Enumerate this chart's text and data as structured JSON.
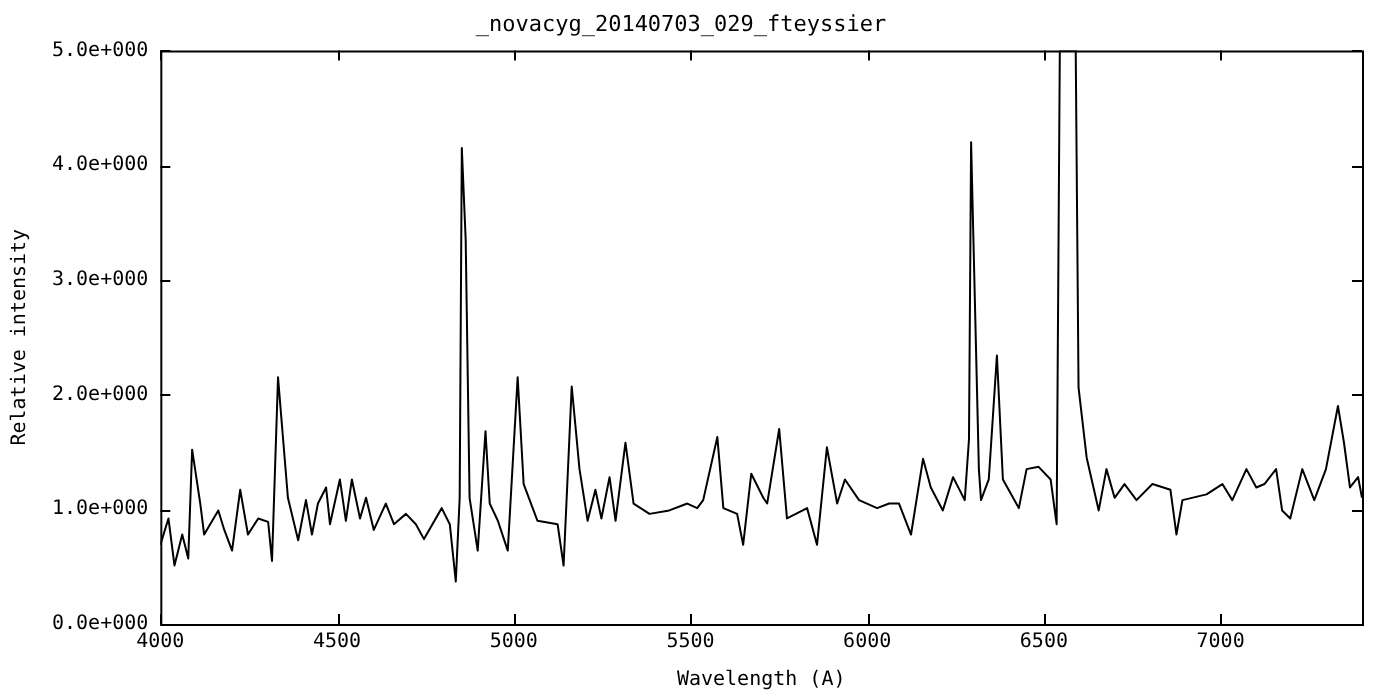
{
  "chart_data": {
    "type": "line",
    "title": "_novacyg_20140703_029_fteyssier",
    "xlabel": "Wavelength (A)",
    "ylabel": "Relative intensity",
    "xlim": [
      4000,
      7400
    ],
    "xticks": [
      4000,
      4500,
      5000,
      5500,
      6000,
      6500,
      7000
    ],
    "ylim": [
      0,
      5
    ],
    "yticks": [
      {
        "value": 0,
        "label": "0.0e+000"
      },
      {
        "value": 1,
        "label": "1.0e+000"
      },
      {
        "value": 2,
        "label": "2.0e+000"
      },
      {
        "value": 3,
        "label": "3.0e+000"
      },
      {
        "value": 4,
        "label": "4.0e+000"
      },
      {
        "value": 5,
        "label": "5.0e+000"
      }
    ],
    "grid": false,
    "legend": false,
    "marker": "none",
    "line_style": "solid",
    "series": [
      {
        "color": "#000000",
        "x": [
          4000,
          4023,
          4040,
          4062,
          4079,
          4090,
          4113,
          4124,
          4164,
          4181,
          4203,
          4226,
          4248,
          4277,
          4305,
          4316,
          4333,
          4345,
          4361,
          4390,
          4412,
          4429,
          4446,
          4469,
          4480,
          4508,
          4525,
          4542,
          4565,
          4582,
          4604,
          4638,
          4661,
          4695,
          4723,
          4746,
          4796,
          4819,
          4836,
          4847,
          4853,
          4864,
          4875,
          4898,
          4920,
          4932,
          4955,
          4983,
          5011,
          5028,
          5067,
          5124,
          5141,
          5164,
          5186,
          5209,
          5231,
          5248,
          5271,
          5288,
          5316,
          5339,
          5384,
          5440,
          5491,
          5519,
          5536,
          5576,
          5593,
          5632,
          5649,
          5672,
          5706,
          5717,
          5751,
          5773,
          5830,
          5858,
          5886,
          5915,
          5937,
          5977,
          6028,
          6062,
          6090,
          6124,
          6158,
          6180,
          6214,
          6243,
          6276,
          6288,
          6294,
          6316,
          6322,
          6344,
          6367,
          6384,
          6429,
          6451,
          6485,
          6519,
          6536,
          6545,
          6590,
          6598,
          6621,
          6655,
          6677,
          6700,
          6728,
          6762,
          6807,
          6858,
          6875,
          6892,
          6960,
          7005,
          7033,
          7073,
          7101,
          7124,
          7157,
          7174,
          7197,
          7231,
          7265,
          7298,
          7332,
          7349,
          7366,
          7389,
          7400
        ],
        "values": [
          0.69,
          0.92,
          0.51,
          0.78,
          0.57,
          1.52,
          1.05,
          0.78,
          0.99,
          0.82,
          0.64,
          1.17,
          0.78,
          0.92,
          0.89,
          0.55,
          2.15,
          1.7,
          1.1,
          0.73,
          1.08,
          0.78,
          1.05,
          1.19,
          0.87,
          1.26,
          0.9,
          1.26,
          0.92,
          1.1,
          0.82,
          1.05,
          0.87,
          0.96,
          0.87,
          0.74,
          1.01,
          0.87,
          0.37,
          1.1,
          4.15,
          3.35,
          1.1,
          0.64,
          1.68,
          1.05,
          0.9,
          0.64,
          2.15,
          1.22,
          0.9,
          0.87,
          0.51,
          2.07,
          1.35,
          0.9,
          1.17,
          0.92,
          1.28,
          0.9,
          1.58,
          1.05,
          0.96,
          0.99,
          1.05,
          1.01,
          1.08,
          1.63,
          1.01,
          0.96,
          0.69,
          1.31,
          1.1,
          1.05,
          1.7,
          0.92,
          1.01,
          0.69,
          1.54,
          1.05,
          1.26,
          1.08,
          1.01,
          1.05,
          1.05,
          0.78,
          1.44,
          1.19,
          0.99,
          1.28,
          1.08,
          1.61,
          4.2,
          1.35,
          1.08,
          1.26,
          2.34,
          1.26,
          1.01,
          1.35,
          1.37,
          1.26,
          0.87,
          5,
          5,
          2.06,
          1.45,
          0.99,
          1.35,
          1.1,
          1.22,
          1.08,
          1.22,
          1.17,
          0.78,
          1.08,
          1.13,
          1.22,
          1.08,
          1.35,
          1.19,
          1.22,
          1.35,
          0.99,
          0.92,
          1.35,
          1.08,
          1.35,
          1.9,
          1.58,
          1.19,
          1.28,
          1.1
        ]
      }
    ]
  }
}
